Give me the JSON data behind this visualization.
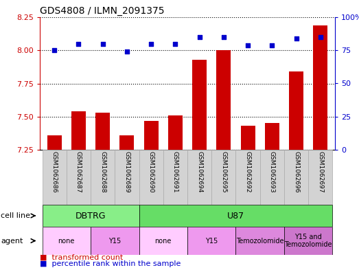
{
  "title": "GDS4808 / ILMN_2091375",
  "samples": [
    "GSM1062686",
    "GSM1062687",
    "GSM1062688",
    "GSM1062689",
    "GSM1062690",
    "GSM1062691",
    "GSM1062694",
    "GSM1062695",
    "GSM1062692",
    "GSM1062693",
    "GSM1062696",
    "GSM1062697"
  ],
  "transformed_count": [
    7.36,
    7.54,
    7.53,
    7.36,
    7.47,
    7.51,
    7.93,
    8.0,
    7.43,
    7.45,
    7.84,
    8.19
  ],
  "percentile_rank": [
    75,
    80,
    80,
    74,
    80,
    80,
    85,
    85,
    79,
    79,
    84,
    85
  ],
  "ylim_left": [
    7.25,
    8.25
  ],
  "ylim_right": [
    0,
    100
  ],
  "yticks_left": [
    7.25,
    7.5,
    7.75,
    8.0,
    8.25
  ],
  "yticks_right": [
    0,
    25,
    50,
    75,
    100
  ],
  "bar_color": "#cc0000",
  "dot_color": "#0000cc",
  "cell_line_groups": [
    {
      "label": "DBTRG",
      "start": 0,
      "end": 3,
      "color": "#88ee88"
    },
    {
      "label": "U87",
      "start": 4,
      "end": 11,
      "color": "#66dd66"
    }
  ],
  "agent_groups": [
    {
      "label": "none",
      "start": 0,
      "end": 1,
      "color": "#ffccff"
    },
    {
      "label": "Y15",
      "start": 2,
      "end": 3,
      "color": "#ee99ee"
    },
    {
      "label": "none",
      "start": 4,
      "end": 5,
      "color": "#ffccff"
    },
    {
      "label": "Y15",
      "start": 6,
      "end": 7,
      "color": "#ee99ee"
    },
    {
      "label": "Temozolomide",
      "start": 8,
      "end": 9,
      "color": "#dd88dd"
    },
    {
      "label": "Y15 and\nTemozolomide",
      "start": 10,
      "end": 11,
      "color": "#cc77cc"
    }
  ]
}
